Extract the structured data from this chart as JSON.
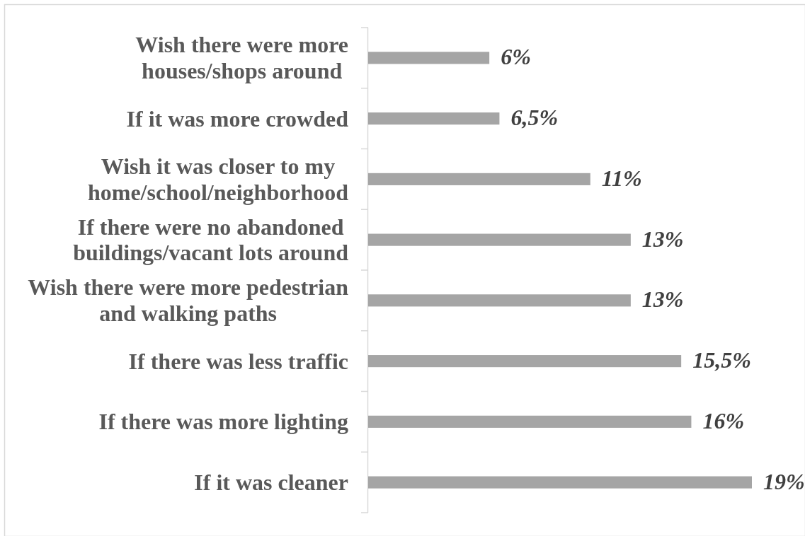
{
  "chart_data": {
    "type": "bar",
    "orientation": "horizontal",
    "categories": [
      "Wish there were more houses/shops around",
      "If it was more crowded",
      "Wish it was closer to my home/school/neighborhood",
      "If there were no abandoned buildings/vacant lots around",
      "Wish there were more pedestrian and walking paths",
      "If there was less traffic",
      "If there was more lighting",
      "If it was cleaner"
    ],
    "values": [
      6,
      6.5,
      11,
      13,
      13,
      15.5,
      16,
      19
    ],
    "value_labels": [
      "6%",
      "6,5%",
      "11%",
      "13%",
      "13%",
      "15,5%",
      "16%",
      "19%"
    ],
    "color": "#a5a5a5"
  }
}
